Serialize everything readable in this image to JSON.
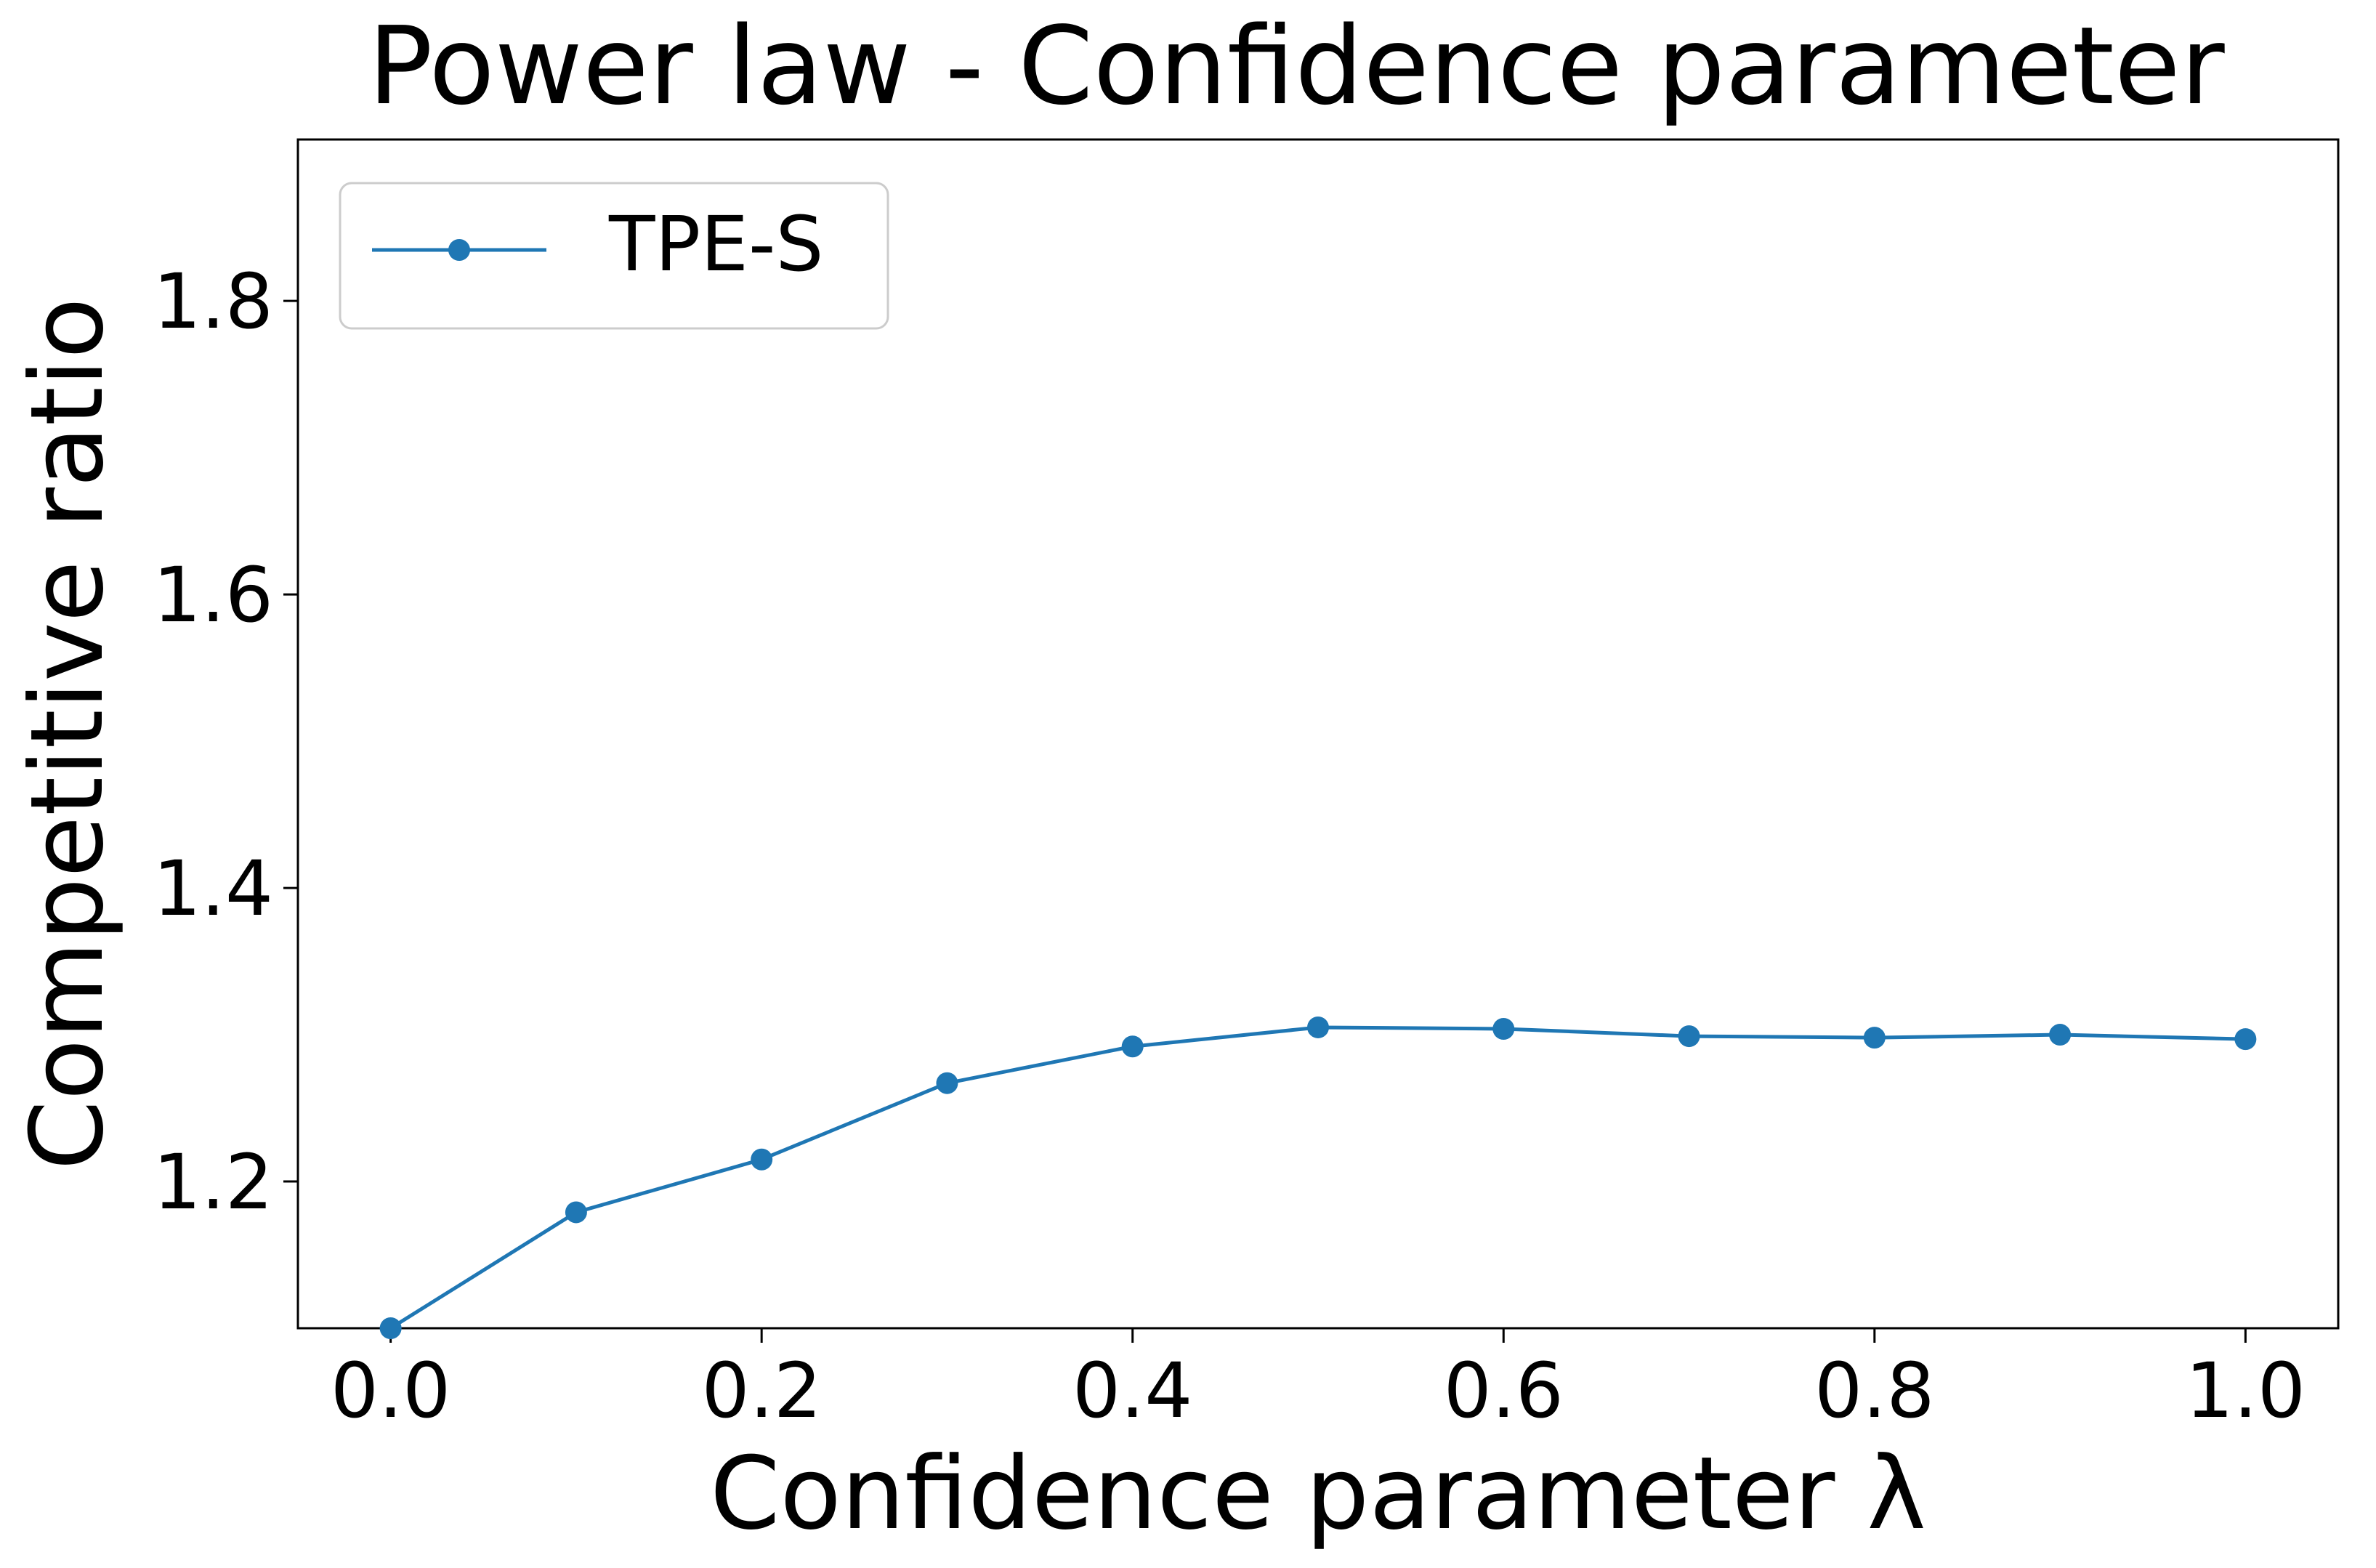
{
  "chart_data": {
    "type": "line",
    "title": "Power law - Confidence parameter",
    "xlabel": "Confidence parameter λ",
    "ylabel": "Competitive ratio",
    "xlim": [
      -0.05,
      1.05
    ],
    "ylim": [
      1.1,
      1.91
    ],
    "xticks": [
      0.0,
      0.2,
      0.4,
      0.6,
      0.8,
      1.0
    ],
    "xtick_labels": [
      "0.0",
      "0.2",
      "0.4",
      "0.6",
      "0.8",
      "1.0"
    ],
    "yticks": [
      1.2,
      1.4,
      1.6,
      1.8
    ],
    "ytick_labels": [
      "1.2",
      "1.4",
      "1.6",
      "1.8"
    ],
    "grid": false,
    "legend_position": "upper-left",
    "x": [
      0.0,
      0.1,
      0.2,
      0.3,
      0.4,
      0.5,
      0.6,
      0.7,
      0.8,
      0.9,
      1.0
    ],
    "series": [
      {
        "name": "TPE-S",
        "color": "#1f77b4",
        "marker": "circle",
        "values": [
          1.1,
          1.179,
          1.215,
          1.267,
          1.292,
          1.305,
          1.304,
          1.299,
          1.298,
          1.3,
          1.297
        ]
      }
    ]
  }
}
